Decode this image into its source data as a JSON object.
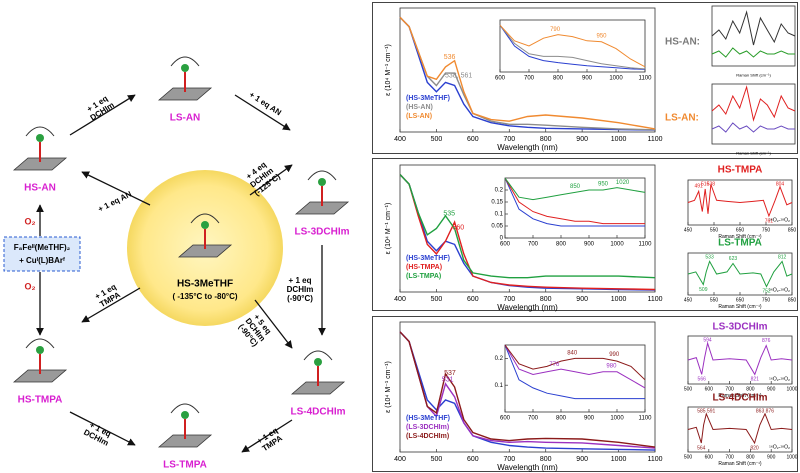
{
  "scheme": {
    "nodes": [
      {
        "label": "HS-AN"
      },
      {
        "label": "LS-AN"
      },
      {
        "label": "LS-3DCHIm"
      },
      {
        "label": "LS-4DCHIm"
      },
      {
        "label": "LS-TMPA"
      },
      {
        "label": "HS-TMPA"
      }
    ],
    "node_color": "#d81fd0",
    "center": {
      "label": "HS-3MeTHF",
      "conditions": "( -135°C  to  -80°C)"
    },
    "start": [
      "F₈Feᴵᴵ(MeTHF)₂",
      "+ Cuᴵ(L)BArᶠ"
    ],
    "oxidant": [
      "O₂",
      "O₂"
    ],
    "reagents": [
      [
        "+ 1 eq",
        "DCHIm"
      ],
      [
        "+ 1 eq AN"
      ],
      [
        "+ 4 eq",
        "DCHIm",
        "(-125°C)"
      ],
      [
        "+ 1 eq AN"
      ],
      [
        "+ 1 eq",
        "DCHIm",
        "(-90°C)"
      ],
      [
        "+ 5 eq",
        "DCHIm",
        "(-90°C)"
      ],
      [
        "+ 1 eq",
        "TMPA"
      ],
      [
        "+ 1 eq",
        "DCHIm"
      ],
      [
        "+ 1 eq",
        "TMPA"
      ]
    ]
  },
  "chart_data": [
    {
      "type": "line",
      "x": [
        400,
        425,
        450,
        475,
        500,
        525,
        550,
        575,
        600,
        650,
        700,
        750,
        800,
        900,
        1000,
        1100
      ],
      "series": [
        {
          "name": "(HS-3MeTHF)",
          "color": "#2a3fd0",
          "values": [
            3.7,
            3.4,
            2.5,
            1.6,
            1.3,
            1.6,
            1.5,
            0.9,
            0.5,
            0.3,
            0.2,
            0.15,
            0.12,
            0.1,
            0.08,
            0.06
          ]
        },
        {
          "name": "(HS-AN)",
          "color": "#8c8c8c",
          "values": [
            3.7,
            3.4,
            2.6,
            1.8,
            1.5,
            1.9,
            1.9,
            1.2,
            0.6,
            0.35,
            0.25,
            0.25,
            0.22,
            0.15,
            0.1,
            0.07
          ]
        },
        {
          "name": "(LS-AN)",
          "color": "#f08a30",
          "values": [
            3.7,
            3.4,
            2.6,
            1.8,
            1.7,
            2.1,
            2.3,
            1.3,
            0.6,
            0.4,
            0.35,
            0.5,
            0.55,
            0.45,
            0.3,
            0.1
          ]
        }
      ],
      "xlim": [
        400,
        1100
      ],
      "ylim": [
        0,
        4
      ],
      "xticks": [
        400,
        500,
        600,
        700,
        800,
        900,
        1000,
        1100
      ],
      "xlabel": "Wavelength (nm)",
      "ylabel": "ε (10⁴ M⁻¹ cm⁻¹)",
      "legend": "lower left",
      "peak_labels": [
        {
          "x": 536,
          "color": "#f08a30"
        },
        {
          "x": 561,
          "label": "538, 561",
          "color": "#8c8c8c"
        }
      ]
    },
    {
      "type": "line",
      "x": [
        600,
        650,
        700,
        750,
        800,
        850,
        900,
        950,
        1000,
        1050,
        1100
      ],
      "series": [
        {
          "color": "#2a3fd0",
          "values": [
            0.9,
            0.5,
            0.3,
            0.22,
            0.18,
            0.15,
            0.12,
            0.1,
            0.08,
            0.06,
            0.05
          ]
        },
        {
          "color": "#8c8c8c",
          "values": [
            0.9,
            0.55,
            0.35,
            0.3,
            0.3,
            0.28,
            0.22,
            0.16,
            0.12,
            0.08,
            0.06
          ]
        },
        {
          "color": "#f08a30",
          "values": [
            0.9,
            0.6,
            0.5,
            0.65,
            0.72,
            0.68,
            0.6,
            0.58,
            0.45,
            0.25,
            0.1
          ]
        }
      ],
      "xlim": [
        600,
        1100
      ],
      "ylim": [
        0,
        1
      ],
      "xticks": [
        600,
        700,
        800,
        900,
        1000,
        1100
      ],
      "peak_labels": [
        {
          "x": 790,
          "color": "#f08a30"
        },
        {
          "x": 950,
          "color": "#f08a30"
        }
      ]
    },
    {
      "type": "line",
      "x": [
        400,
        425,
        450,
        475,
        500,
        525,
        550,
        575,
        600,
        650,
        700,
        750,
        800,
        900,
        1000,
        1100
      ],
      "series": [
        {
          "name": "(HS-3MeTHF)",
          "color": "#2a3fd0",
          "values": [
            3.7,
            3.4,
            2.5,
            1.6,
            1.3,
            1.6,
            1.5,
            0.9,
            0.5,
            0.3,
            0.2,
            0.15,
            0.12,
            0.1,
            0.08,
            0.06
          ]
        },
        {
          "name": "(HS-TMPA)",
          "color": "#e02020",
          "values": [
            3.7,
            3.4,
            2.4,
            1.5,
            1.2,
            1.6,
            2.2,
            1.2,
            0.5,
            0.3,
            0.22,
            0.18,
            0.15,
            0.12,
            0.1,
            0.08
          ]
        },
        {
          "name": "(LS-TMPA)",
          "color": "#20a040",
          "values": [
            3.7,
            3.4,
            2.5,
            1.8,
            2.0,
            2.4,
            2.0,
            1.0,
            0.6,
            0.5,
            0.45,
            0.45,
            0.5,
            0.5,
            0.5,
            0.45
          ]
        }
      ],
      "xlim": [
        400,
        1100
      ],
      "ylim": [
        0,
        4
      ],
      "xticks": [
        400,
        500,
        600,
        700,
        800,
        900,
        1000,
        1100
      ],
      "xlabel": "Wavelength (nm)",
      "ylabel": "ε (10⁴ M⁻¹ cm⁻¹)",
      "legend": "lower left",
      "peak_labels": [
        {
          "x": 535,
          "color": "#20a040"
        },
        {
          "x": 560,
          "color": "#e02020"
        }
      ]
    },
    {
      "type": "line",
      "x": [
        600,
        650,
        700,
        750,
        800,
        850,
        900,
        950,
        1000,
        1050,
        1100
      ],
      "series": [
        {
          "color": "#2a3fd0",
          "values": [
            0.25,
            0.12,
            0.08,
            0.06,
            0.05,
            0.05,
            0.05,
            0.05,
            0.05,
            0.05,
            0.05
          ]
        },
        {
          "color": "#e02020",
          "values": [
            0.25,
            0.15,
            0.11,
            0.09,
            0.08,
            0.07,
            0.07,
            0.06,
            0.06,
            0.06,
            0.06
          ]
        },
        {
          "color": "#20a040",
          "values": [
            0.25,
            0.17,
            0.16,
            0.17,
            0.18,
            0.19,
            0.2,
            0.2,
            0.21,
            0.2,
            0.19
          ]
        }
      ],
      "xlim": [
        600,
        1100
      ],
      "ylim": [
        0,
        0.25
      ],
      "xticks": [
        600,
        700,
        800,
        900,
        1000,
        1100
      ],
      "yticks": [
        0,
        0.05,
        0.1,
        0.15,
        0.2
      ],
      "peak_labels": [
        {
          "x": 850,
          "color": "#20a040"
        },
        {
          "x": 950,
          "color": "#20a040"
        },
        {
          "x": 1020,
          "color": "#20a040"
        }
      ]
    },
    {
      "type": "line",
      "x": [
        400,
        425,
        450,
        475,
        500,
        525,
        550,
        575,
        600,
        650,
        700,
        750,
        800,
        900,
        1000,
        1100
      ],
      "series": [
        {
          "name": "(HS-3MeTHF)",
          "color": "#2a3fd0",
          "values": [
            3.7,
            3.4,
            2.5,
            1.6,
            1.3,
            1.6,
            1.5,
            0.9,
            0.5,
            0.3,
            0.2,
            0.15,
            0.12,
            0.1,
            0.08,
            0.06
          ]
        },
        {
          "name": "(LS-3DCHIm)",
          "color": "#9b30c0",
          "values": [
            3.7,
            3.4,
            2.4,
            1.4,
            1.1,
            2.1,
            1.7,
            0.9,
            0.5,
            0.35,
            0.3,
            0.32,
            0.3,
            0.28,
            0.2,
            0.12
          ]
        },
        {
          "name": "(LS-4DCHIm)",
          "color": "#8b1a1a",
          "values": [
            3.7,
            3.4,
            2.4,
            1.4,
            1.2,
            2.4,
            2.0,
            1.0,
            0.6,
            0.4,
            0.35,
            0.4,
            0.42,
            0.4,
            0.3,
            0.15
          ]
        }
      ],
      "xlim": [
        400,
        1100
      ],
      "ylim": [
        0,
        4
      ],
      "xticks": [
        400,
        500,
        600,
        700,
        800,
        900,
        1000,
        1100
      ],
      "xlabel": "Wavelength (nm)",
      "ylabel": "ε (10⁴ M⁻¹ cm⁻¹)",
      "legend": "lower left",
      "peak_labels": [
        {
          "x": 531,
          "color": "#9b30c0"
        },
        {
          "x": 537,
          "color": "#8b1a1a"
        }
      ]
    },
    {
      "type": "line",
      "x": [
        600,
        650,
        700,
        750,
        800,
        850,
        900,
        950,
        1000,
        1050,
        1100
      ],
      "series": [
        {
          "color": "#2a3fd0",
          "values": [
            0.25,
            0.12,
            0.09,
            0.07,
            0.06,
            0.05,
            0.05,
            0.05,
            0.05,
            0.05,
            0.05
          ]
        },
        {
          "color": "#9b30c0",
          "values": [
            0.25,
            0.16,
            0.14,
            0.15,
            0.16,
            0.15,
            0.14,
            0.15,
            0.15,
            0.12,
            0.09
          ]
        },
        {
          "color": "#8b1a1a",
          "values": [
            0.25,
            0.18,
            0.16,
            0.17,
            0.19,
            0.2,
            0.2,
            0.2,
            0.19,
            0.17,
            0.12
          ]
        }
      ],
      "xlim": [
        600,
        1100
      ],
      "ylim": [
        0,
        0.25
      ],
      "xticks": [
        600,
        700,
        800,
        900,
        1000,
        1100
      ],
      "yticks": [
        0.1,
        0.2
      ],
      "peak_labels": [
        {
          "x": 776,
          "color": "#9b30c0"
        },
        {
          "x": 840,
          "color": "#8b1a1a"
        },
        {
          "x": 990,
          "color": "#8b1a1a"
        },
        {
          "x": 980,
          "color": "#9b30c0"
        }
      ]
    },
    {
      "type": "line",
      "title": "HS-AN:",
      "color": "#7a7a7a",
      "x": [
        400,
        450,
        500,
        550,
        600,
        650,
        700,
        750,
        800,
        850,
        900,
        950,
        1000
      ],
      "series": [
        {
          "color": "#333333",
          "values": [
            0,
            0.2,
            -0.1,
            0.5,
            0.1,
            0.8,
            -0.3,
            0.6,
            0.2,
            -0.2,
            0.4,
            0.1,
            0
          ]
        },
        {
          "color": "#2a9d2a",
          "values": [
            -0.6,
            -0.5,
            -0.7,
            -0.4,
            -0.6,
            -0.5,
            -0.7,
            -0.5,
            -0.6,
            -0.6,
            -0.5,
            -0.6,
            -0.6
          ]
        }
      ],
      "xlim": [
        400,
        1000
      ],
      "ylim": [
        -1,
        1
      ],
      "xlabel": "Raman Shift (cm⁻¹)"
    },
    {
      "type": "line",
      "title": "LS-AN:",
      "color": "#f08a30",
      "x": [
        400,
        450,
        500,
        550,
        600,
        650,
        700,
        750,
        800,
        850,
        900,
        950,
        1000
      ],
      "series": [
        {
          "color": "#e02020",
          "values": [
            0.1,
            0.3,
            0,
            0.6,
            0.2,
            0.9,
            -0.2,
            0.5,
            0.3,
            -0.1,
            0.6,
            0.2,
            0.1
          ]
        },
        {
          "color": "#6a4cc0",
          "values": [
            -0.5,
            -0.4,
            -0.6,
            -0.3,
            -0.5,
            -0.4,
            -0.6,
            -0.4,
            -0.5,
            -0.5,
            -0.4,
            -0.5,
            -0.5
          ]
        }
      ],
      "xlim": [
        400,
        1000
      ],
      "ylim": [
        -1,
        1
      ],
      "xlabel": "Raman Shift (cm⁻¹)"
    },
    {
      "type": "line",
      "title": "HS-TMPA",
      "color": "#e02020",
      "x": [
        450,
        475,
        491,
        505,
        516,
        527,
        538,
        560,
        600,
        650,
        700,
        740,
        761,
        785,
        804,
        830,
        850
      ],
      "series": [
        {
          "color": "#e02020",
          "values": [
            0,
            0.1,
            0.5,
            -0.4,
            0.6,
            -0.5,
            0.8,
            0.1,
            0.05,
            0,
            0.05,
            0.1,
            -0.6,
            0.1,
            0.7,
            -0.1,
            0
          ]
        }
      ],
      "xlim": [
        450,
        850
      ],
      "ylim": [
        -1,
        1
      ],
      "xticks": [
        450,
        550,
        650,
        750,
        850
      ],
      "xlabel": "Raman Shift (cm⁻¹)",
      "note": "¹⁶O₂-¹⁸O₂",
      "peak_labels": [
        {
          "x": 491,
          "color": "#e02020"
        },
        {
          "x": 516,
          "color": "#e02020"
        },
        {
          "x": 538,
          "color": "#e02020"
        },
        {
          "x": 761,
          "color": "#e02020"
        },
        {
          "x": 804,
          "color": "#e02020"
        }
      ]
    },
    {
      "type": "line",
      "title": "LS-TMPA",
      "color": "#20a040",
      "x": [
        450,
        480,
        509,
        520,
        533,
        560,
        600,
        623,
        650,
        700,
        730,
        752,
        780,
        812,
        830,
        850
      ],
      "series": [
        {
          "color": "#20a040",
          "values": [
            0,
            0.1,
            -0.5,
            0.1,
            0.6,
            0,
            0.1,
            0.5,
            0,
            0.05,
            0,
            -0.6,
            0.1,
            0.6,
            -0.1,
            0
          ]
        }
      ],
      "xlim": [
        450,
        850
      ],
      "ylim": [
        -1,
        1
      ],
      "xticks": [
        450,
        550,
        650,
        750,
        850
      ],
      "xlabel": "Raman Shift (cm⁻¹)",
      "note": "¹⁶O₂-¹⁸O₂",
      "peak_labels": [
        {
          "x": 509,
          "color": "#20a040"
        },
        {
          "x": 533,
          "color": "#20a040"
        },
        {
          "x": 623,
          "color": "#20a040"
        },
        {
          "x": 752,
          "color": "#20a040"
        },
        {
          "x": 812,
          "color": "#20a040"
        }
      ]
    },
    {
      "type": "line",
      "title": "LS-3DCHIm",
      "color": "#9b30c0",
      "x": [
        500,
        540,
        566,
        580,
        594,
        620,
        700,
        780,
        821,
        850,
        876,
        900,
        950,
        1000
      ],
      "series": [
        {
          "color": "#9b30c0",
          "values": [
            0,
            0.1,
            -0.6,
            0.1,
            0.7,
            0,
            0.05,
            0,
            -0.6,
            0.1,
            0.6,
            0,
            0.05,
            0
          ]
        }
      ],
      "xlim": [
        500,
        1000
      ],
      "ylim": [
        -1,
        1
      ],
      "xticks": [
        500,
        600,
        700,
        800,
        900,
        1000
      ],
      "xlabel": "Raman Shift (cm⁻¹)",
      "note": "¹⁶O₂-¹⁸O₂",
      "peak_labels": [
        {
          "x": 566,
          "color": "#9b30c0"
        },
        {
          "x": 594,
          "color": "#9b30c0"
        },
        {
          "x": 821,
          "color": "#9b30c0"
        },
        {
          "x": 876,
          "color": "#9b30c0"
        }
      ]
    },
    {
      "type": "line",
      "title": "LS-4DCHIm",
      "color": "#8b1a1a",
      "x": [
        500,
        540,
        564,
        575,
        588,
        620,
        700,
        780,
        820,
        845,
        870,
        900,
        950,
        1000
      ],
      "series": [
        {
          "color": "#8b1a1a",
          "values": [
            0,
            0.1,
            -0.6,
            0.2,
            0.7,
            0,
            0.05,
            0,
            -0.6,
            0.2,
            0.7,
            0,
            0.05,
            0
          ]
        }
      ],
      "xlim": [
        500,
        1000
      ],
      "ylim": [
        -1,
        1
      ],
      "xticks": [
        500,
        600,
        700,
        800,
        900,
        1000
      ],
      "xlabel": "Raman Shift (cm⁻¹)",
      "note": "¹⁶O₂-¹⁸O₂",
      "peak_labels": [
        {
          "x": 564,
          "color": "#8b1a1a"
        },
        {
          "x": 588,
          "label": "585 591",
          "color": "#8b1a1a"
        },
        {
          "x": 820,
          "color": "#8b1a1a"
        },
        {
          "x": 870,
          "label": "863 876",
          "color": "#8b1a1a"
        }
      ]
    }
  ]
}
